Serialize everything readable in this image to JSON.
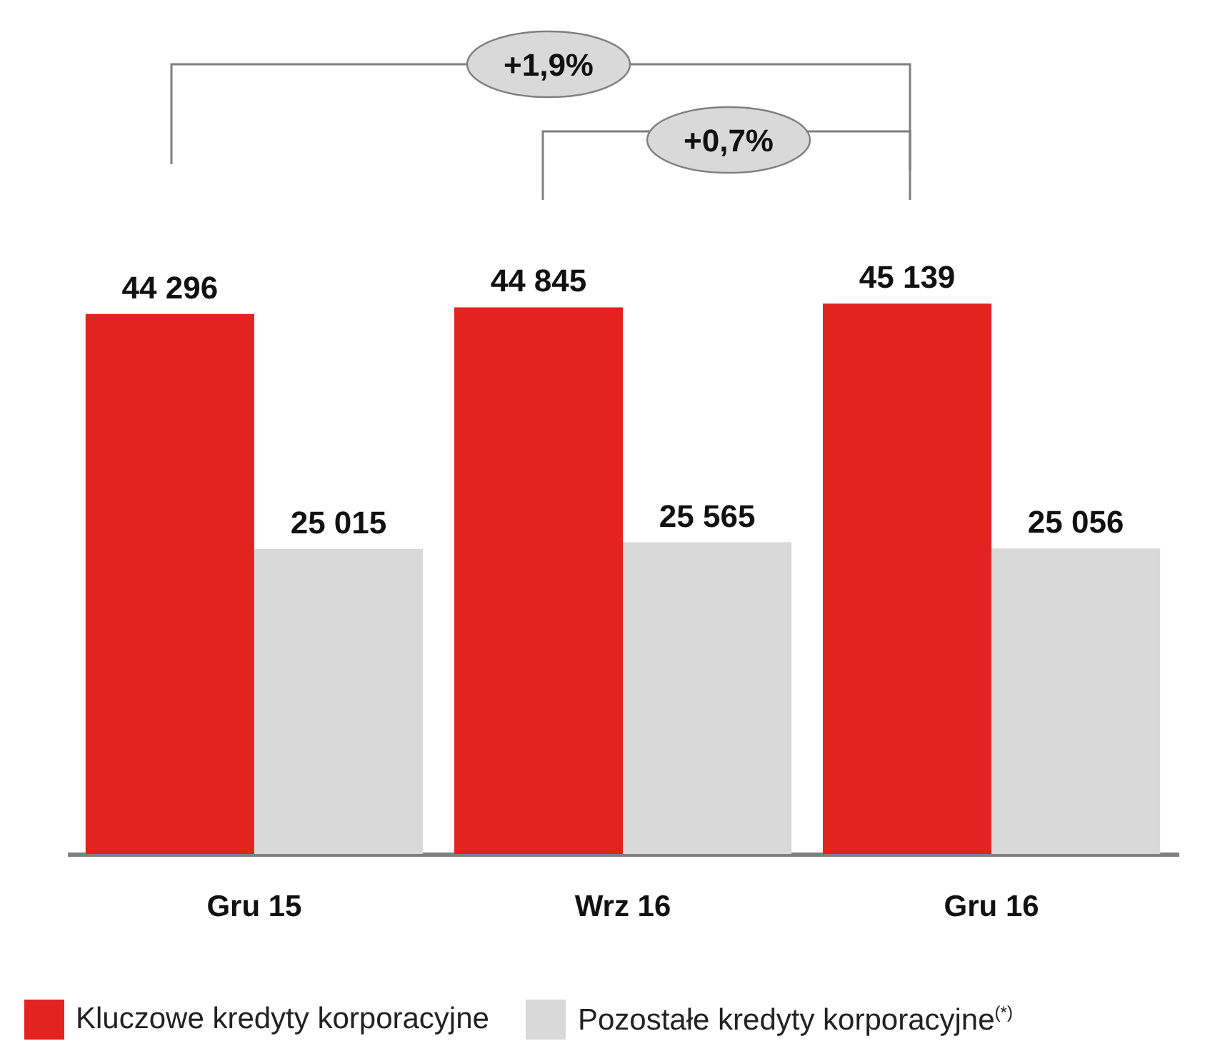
{
  "chart_data": {
    "type": "bar",
    "categories": [
      "Gru 15",
      "Wrz 16",
      "Gru 16"
    ],
    "series": [
      {
        "name": "Kluczowe kredyty korporacyjne",
        "color": "#e3231f",
        "values": [
          44296,
          44845,
          45139
        ]
      },
      {
        "name": "Pozostałe kredyty korporacyjne$^{(*)}$",
        "color": "#d9d9d9",
        "values": [
          25015,
          25565,
          25056
        ]
      }
    ],
    "data_labels": true,
    "annotations": [
      "+1,9%",
      "+0,7%"
    ],
    "legend": "bottom left",
    "grid": false
  }
}
